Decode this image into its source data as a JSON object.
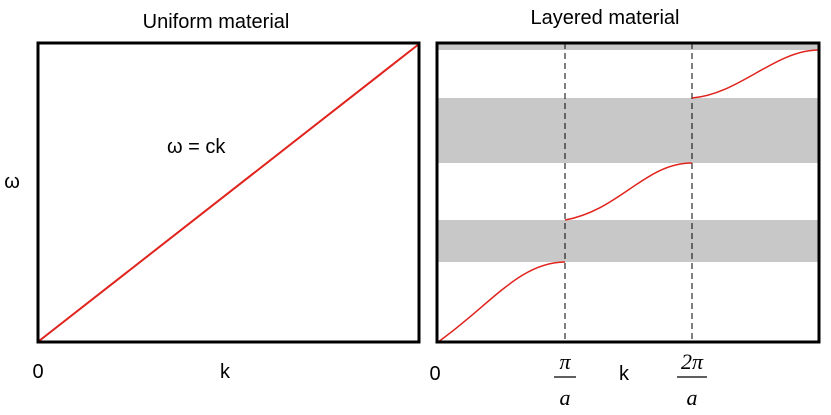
{
  "left_panel": {
    "title": "Uniform material",
    "ylabel": "ω",
    "xlabel": "k",
    "origin": "0",
    "equation": "ω = ck"
  },
  "right_panel": {
    "title": "Layered material",
    "xlabel": "k",
    "origin": "0",
    "tick1": {
      "numerator": "π",
      "denominator": "a"
    },
    "tick2": {
      "numerator": "2π",
      "denominator": "a"
    }
  },
  "colors": {
    "curve": "#e0231d",
    "gap": "#c8c8c8",
    "frame": "#000000"
  }
}
